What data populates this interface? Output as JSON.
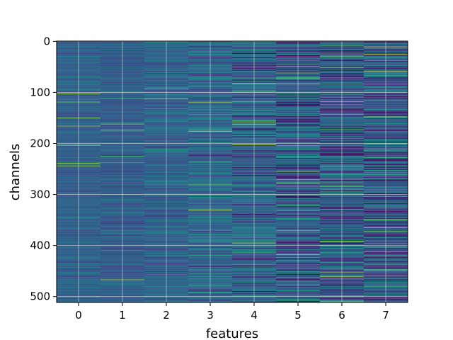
{
  "chart_data": {
    "type": "heatmap",
    "title": "",
    "xlabel": "features",
    "ylabel": "channels",
    "x_ticks": [
      0,
      1,
      2,
      3,
      4,
      5,
      6,
      7
    ],
    "y_ticks": [
      0,
      100,
      200,
      300,
      400,
      500
    ],
    "n_features": 8,
    "n_channels": 512,
    "xlim": [
      -0.5,
      7.5
    ],
    "ylim": [
      511.5,
      -0.5
    ],
    "y_axis_inverted": true,
    "grid": true,
    "colormap": "viridis",
    "value_range": [
      0,
      1
    ],
    "colors": {
      "grid": "#d9d9d9",
      "base": "#3b518b",
      "highlight": "#d2e21b"
    },
    "columns": [
      {
        "feature": 0,
        "value_mean": 0.32,
        "value_spread": 0.06
      },
      {
        "feature": 1,
        "value_mean": 0.31,
        "value_spread": 0.06
      },
      {
        "feature": 2,
        "value_mean": 0.33,
        "value_spread": 0.07
      },
      {
        "feature": 3,
        "value_mean": 0.35,
        "value_spread": 0.1
      },
      {
        "feature": 4,
        "value_mean": 0.33,
        "value_spread": 0.14
      },
      {
        "feature": 5,
        "value_mean": 0.3,
        "value_spread": 0.16
      },
      {
        "feature": 6,
        "value_mean": 0.3,
        "value_spread": 0.17
      },
      {
        "feature": 7,
        "value_mean": 0.31,
        "value_spread": 0.17
      }
    ],
    "highlighted_cells": [
      {
        "feature": 3,
        "channel": 176,
        "value": 0.95
      },
      {
        "feature": 4,
        "channel": 82,
        "value": 0.95
      },
      {
        "feature": 4,
        "channel": 158,
        "value": 0.85
      },
      {
        "feature": 4,
        "channel": 395,
        "value": 0.9
      },
      {
        "feature": 5,
        "channel": 62,
        "value": 0.85
      },
      {
        "feature": 5,
        "channel": 255,
        "value": 0.85
      },
      {
        "feature": 5,
        "channel": 418,
        "value": 0.9
      },
      {
        "feature": 6,
        "channel": 30,
        "value": 0.85
      },
      {
        "feature": 6,
        "channel": 118,
        "value": 0.85
      },
      {
        "feature": 6,
        "channel": 392,
        "value": 0.9
      },
      {
        "feature": 6,
        "channel": 452,
        "value": 0.85
      },
      {
        "feature": 7,
        "channel": 12,
        "value": 0.9
      },
      {
        "feature": 7,
        "channel": 148,
        "value": 0.9
      },
      {
        "feature": 7,
        "channel": 365,
        "value": 0.95
      }
    ],
    "random_seed": 20240517
  }
}
